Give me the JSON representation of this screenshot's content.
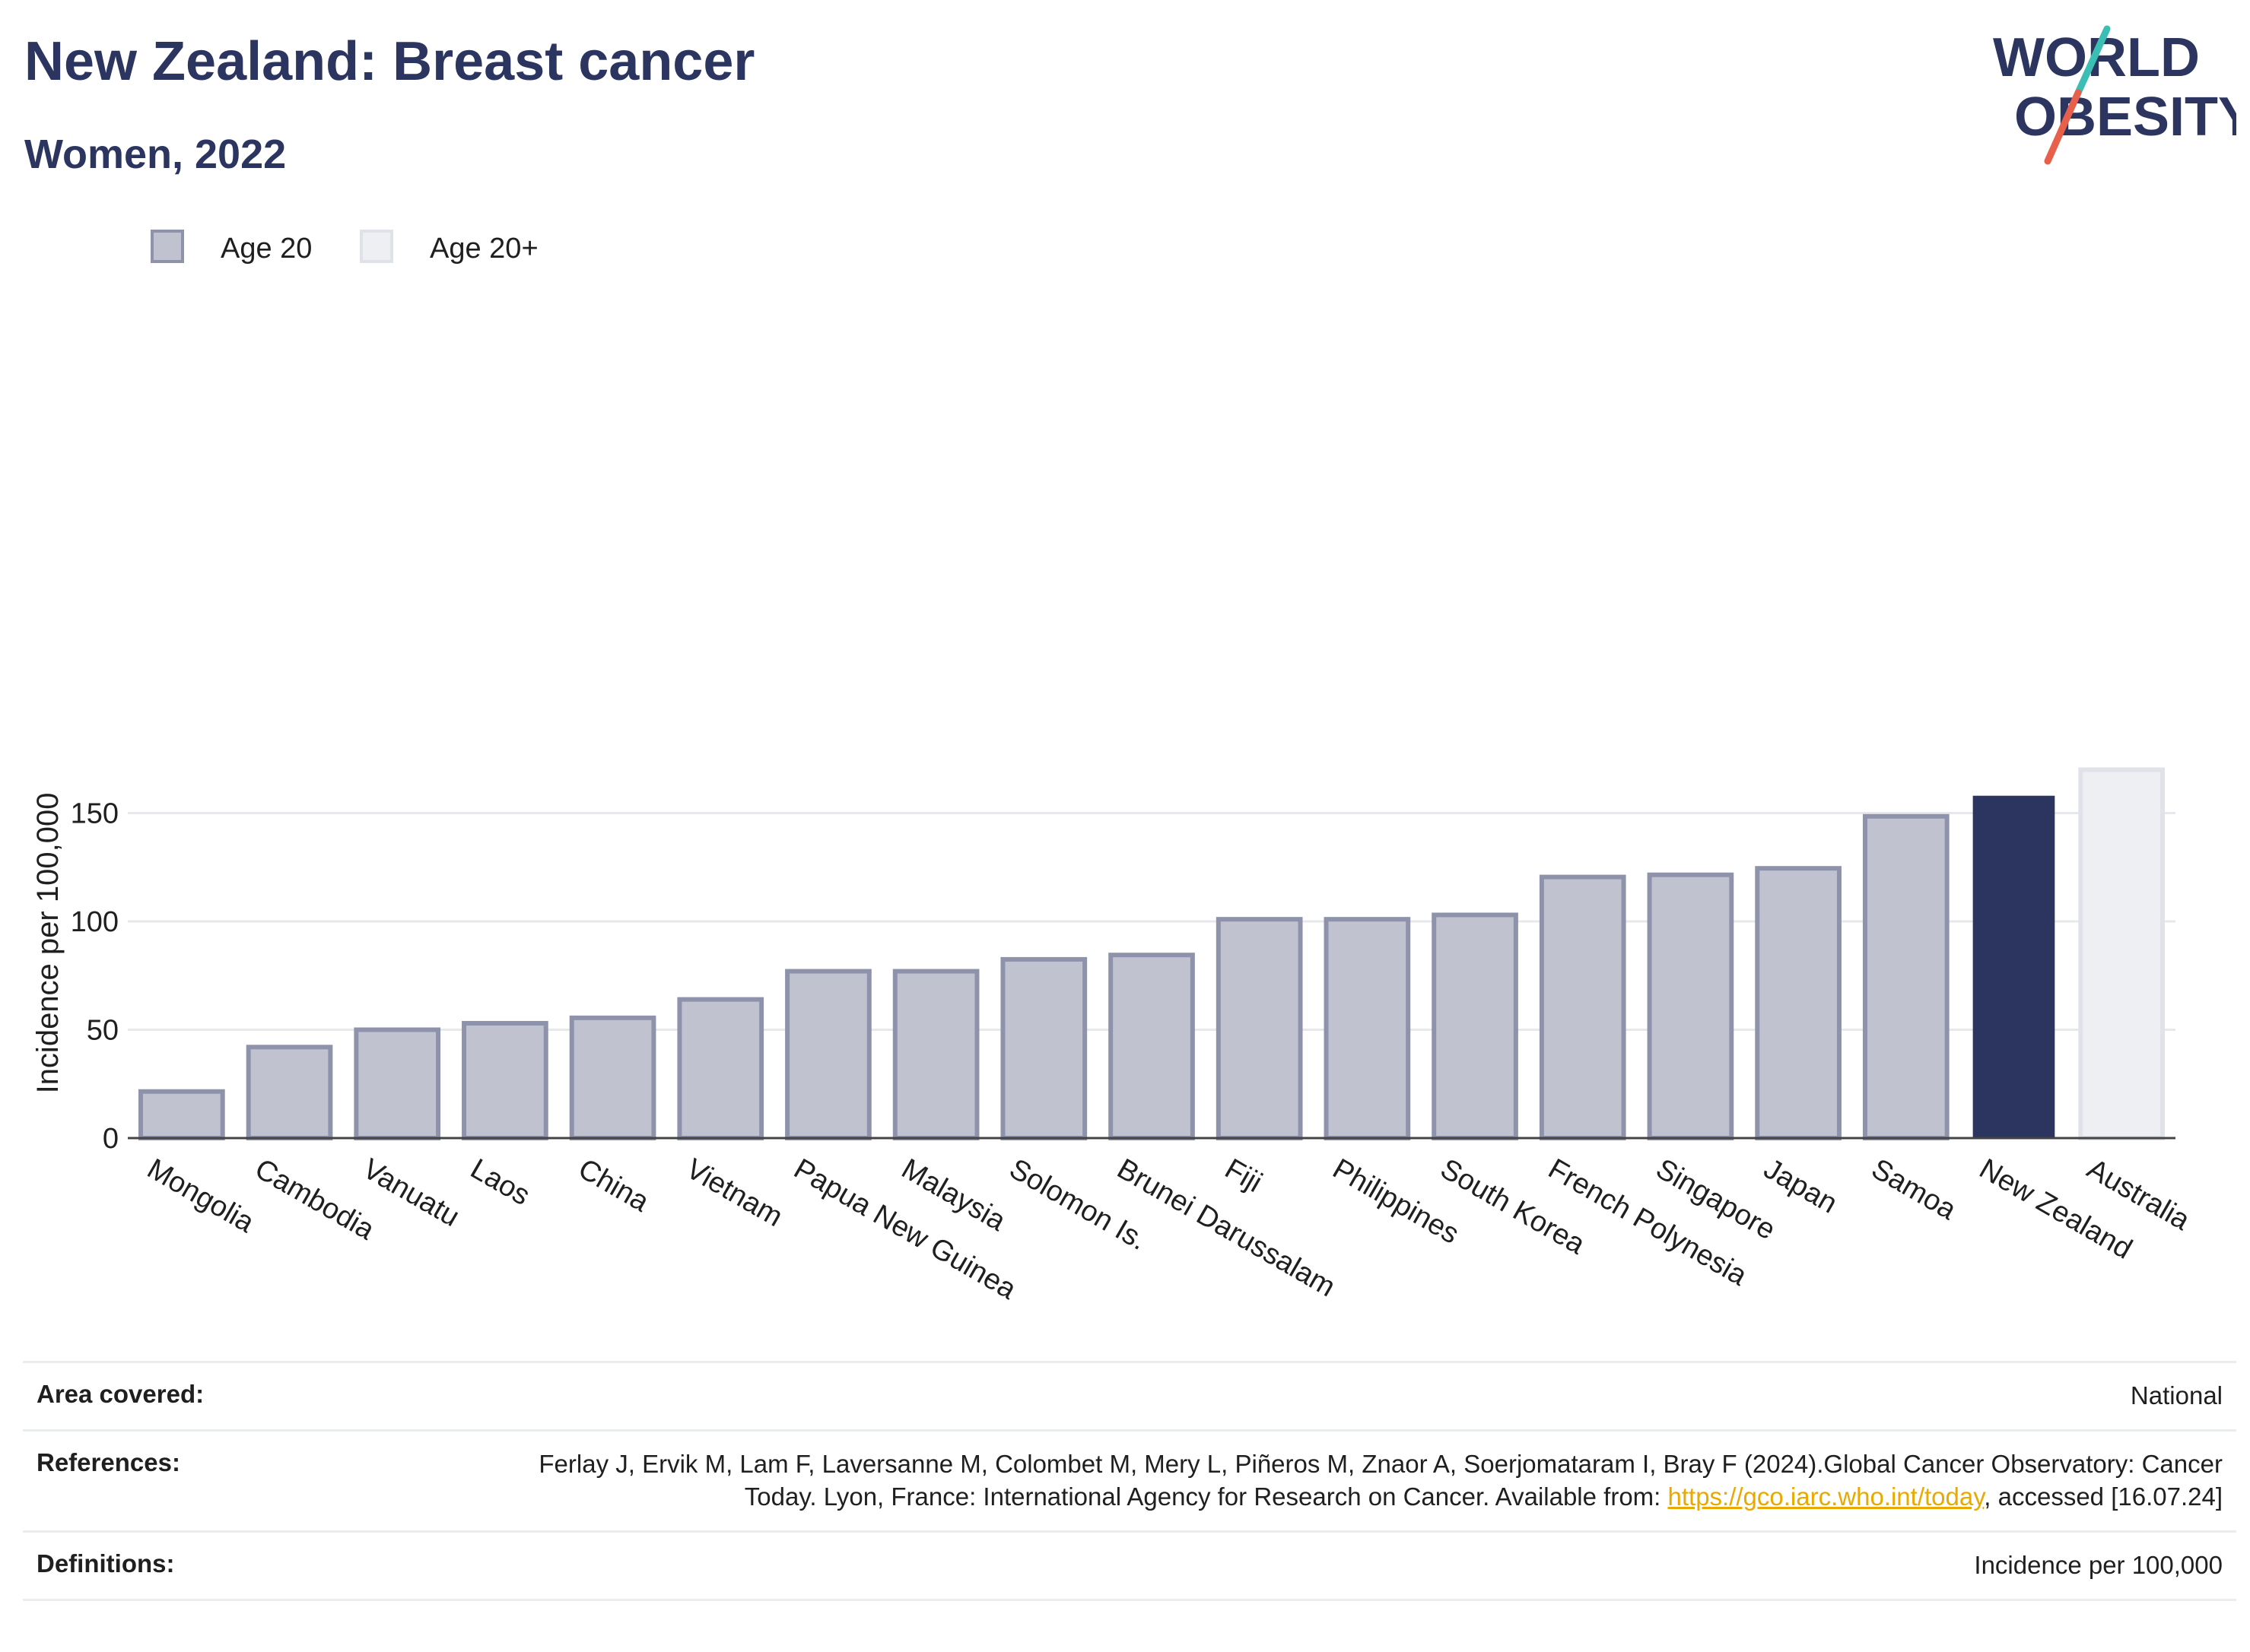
{
  "header": {
    "title": "New Zealand: Breast cancer",
    "subtitle": "Women, 2022"
  },
  "logo": {
    "line1": "WORLD",
    "line2": "OBESITY",
    "accent_teal": "#3bbfb4",
    "accent_red": "#e8604c",
    "text_color": "#2b3560"
  },
  "legend": {
    "items": [
      {
        "label": "Age 20",
        "color": "#c0c3cf",
        "border": "#8e93ab"
      },
      {
        "label": "Age 20+",
        "color": "#eeeff3",
        "border": "#e0e2ea"
      }
    ]
  },
  "chart_data": {
    "type": "bar",
    "categories": [
      "Mongolia",
      "Cambodia",
      "Vanuatu",
      "Laos",
      "China",
      "Vietnam",
      "Papua New Guinea",
      "Malaysia",
      "Solomon Is.",
      "Brunei Darussalam",
      "Fiji",
      "Philippines",
      "South Korea",
      "French Polynesia",
      "Singapore",
      "Japan",
      "Samoa",
      "New Zealand",
      "Australia"
    ],
    "values": [
      21.5,
      42,
      50,
      53,
      55.5,
      64,
      77,
      77,
      82.5,
      84.5,
      101,
      101,
      103,
      120.5,
      121.5,
      124.5,
      148.5,
      158,
      170
    ],
    "highlight": "New Zealand",
    "highlight_color": "#2b3560",
    "reference": "Australia",
    "reference_color": "#eeeff3",
    "default_color": "#c0c3cf",
    "default_border": "#8e93ab",
    "ylabel": "Incidence per 100,000",
    "yticks": [
      0,
      50,
      100,
      150
    ],
    "ylim": [
      0,
      180
    ],
    "grid": true,
    "legend_position": "top-left"
  },
  "footer": {
    "area_label": "Area covered:",
    "area_value": "National",
    "references_label": "References:",
    "references_text": "Ferlay J, Ervik M, Lam F, Laversanne M, Colombet M, Mery L, Piñeros M, Znaor A, Soerjomataram I, Bray F (2024).Global Cancer Observatory: Cancer Today. Lyon, France: International Agency for Research on Cancer. Available from: ",
    "references_link": "https://gco.iarc.who.int/today",
    "references_suffix": ", accessed [16.07.24]",
    "definitions_label": "Definitions:",
    "definitions_value": "Incidence per 100,000"
  }
}
